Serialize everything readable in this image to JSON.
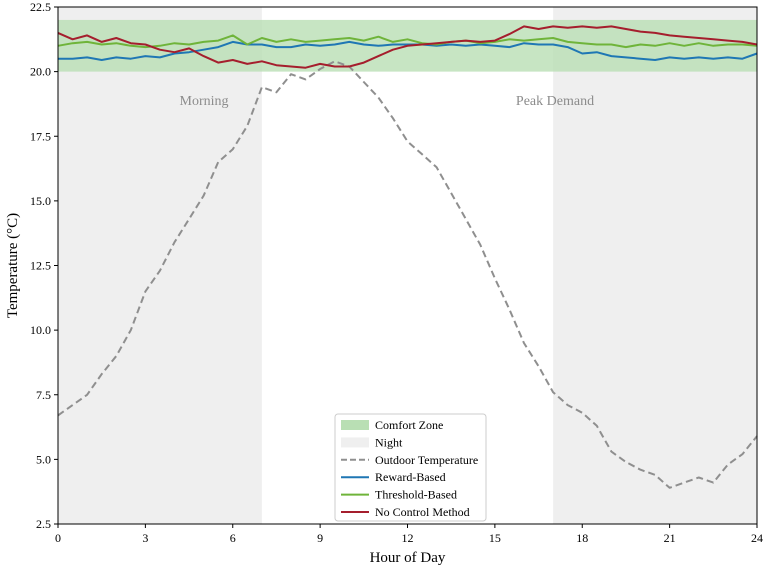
{
  "chart_data": {
    "type": "line",
    "xlabel": "Hour of Day",
    "ylabel": "Temperature (°C)",
    "xlim": [
      0,
      24
    ],
    "ylim": [
      2.5,
      22.5
    ],
    "xticks": [
      "0",
      "3",
      "6",
      "9",
      "12",
      "15",
      "18",
      "21",
      "24"
    ],
    "yticks": [
      "2.5",
      "5.0",
      "7.5",
      "10.0",
      "12.5",
      "15.0",
      "17.5",
      "20.0",
      "22.5"
    ],
    "grid": false,
    "legend_position": "lower-center",
    "comfort_zone": {
      "label": "Comfort Zone",
      "range": [
        20,
        22
      ],
      "color": "#b9dfb4"
    },
    "night_periods": {
      "label": "Night",
      "ranges": [
        [
          0,
          7
        ],
        [
          17,
          24
        ]
      ],
      "color": "#efefef"
    },
    "annotations": [
      {
        "text": "Morning",
        "x": 5,
        "y": 20.6
      },
      {
        "text": "Peak Demand",
        "x": 17,
        "y": 20.6
      }
    ],
    "x": [
      0,
      0.5,
      1,
      1.5,
      2,
      2.5,
      3,
      3.5,
      4,
      4.5,
      5,
      5.5,
      6,
      6.5,
      7,
      7.5,
      8,
      8.5,
      9,
      9.5,
      10,
      10.5,
      11,
      11.5,
      12,
      12.5,
      13,
      13.5,
      14,
      14.5,
      15,
      15.5,
      16,
      16.5,
      17,
      17.5,
      18,
      18.5,
      19,
      19.5,
      20,
      20.5,
      21,
      21.5,
      22,
      22.5,
      23,
      23.5,
      24
    ],
    "series": [
      {
        "name": "Outdoor Temperature",
        "style": "dashed",
        "color": "#8f8f8f",
        "values": [
          6.7,
          7.1,
          7.5,
          8.3,
          9.0,
          10.0,
          11.5,
          12.3,
          13.4,
          14.3,
          15.2,
          16.5,
          17.0,
          17.9,
          19.4,
          19.2,
          19.9,
          19.7,
          20.1,
          20.4,
          20.2,
          19.6,
          19.0,
          18.2,
          17.3,
          16.8,
          16.3,
          15.3,
          14.3,
          13.3,
          12.0,
          10.8,
          9.5,
          8.6,
          7.6,
          7.1,
          6.8,
          6.3,
          5.3,
          4.9,
          4.6,
          4.4,
          3.9,
          4.1,
          4.3,
          4.1,
          4.8,
          5.2,
          5.9
        ]
      },
      {
        "name": "Reward-Based",
        "style": "solid",
        "color": "#1f77b4",
        "values": [
          20.5,
          20.5,
          20.55,
          20.45,
          20.55,
          20.5,
          20.6,
          20.55,
          20.7,
          20.75,
          20.85,
          20.95,
          21.15,
          21.05,
          21.05,
          20.95,
          20.95,
          21.05,
          21.0,
          21.05,
          21.15,
          21.05,
          21.0,
          21.05,
          21.05,
          21.05,
          21.0,
          21.05,
          21.0,
          21.05,
          21.0,
          20.95,
          21.1,
          21.05,
          21.05,
          20.95,
          20.7,
          20.75,
          20.6,
          20.55,
          20.5,
          20.45,
          20.55,
          20.5,
          20.55,
          20.5,
          20.55,
          20.5,
          20.7
        ]
      },
      {
        "name": "Threshold-Based",
        "style": "solid",
        "color": "#6fb43a",
        "values": [
          21.0,
          21.1,
          21.15,
          21.05,
          21.1,
          21.0,
          20.95,
          21.0,
          21.1,
          21.05,
          21.15,
          21.2,
          21.4,
          21.05,
          21.3,
          21.15,
          21.25,
          21.15,
          21.2,
          21.25,
          21.3,
          21.2,
          21.35,
          21.15,
          21.25,
          21.1,
          21.05,
          21.15,
          21.2,
          21.1,
          21.15,
          21.25,
          21.2,
          21.25,
          21.3,
          21.15,
          21.1,
          21.05,
          21.05,
          20.95,
          21.05,
          21.0,
          21.1,
          21.0,
          21.1,
          21.0,
          21.05,
          21.05,
          21.0
        ]
      },
      {
        "name": "No Control Method",
        "style": "solid",
        "color": "#a51e2d",
        "values": [
          21.5,
          21.25,
          21.4,
          21.15,
          21.3,
          21.1,
          21.05,
          20.85,
          20.75,
          20.9,
          20.6,
          20.35,
          20.45,
          20.3,
          20.4,
          20.25,
          20.2,
          20.15,
          20.3,
          20.2,
          20.2,
          20.35,
          20.6,
          20.85,
          21.0,
          21.05,
          21.1,
          21.15,
          21.2,
          21.15,
          21.2,
          21.45,
          21.75,
          21.65,
          21.75,
          21.7,
          21.75,
          21.7,
          21.75,
          21.65,
          21.55,
          21.5,
          21.4,
          21.35,
          21.3,
          21.25,
          21.2,
          21.15,
          21.05
        ]
      }
    ]
  }
}
